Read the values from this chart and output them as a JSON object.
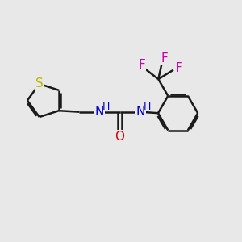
{
  "bg_color": "#e8e8e8",
  "bond_color": "#1a1a1a",
  "S_color": "#b8b800",
  "N_color": "#0000cc",
  "O_color": "#dd0000",
  "F_color": "#cc00aa",
  "line_width": 1.8,
  "fig_size": [
    3.0,
    3.0
  ],
  "dpi": 100,
  "xlim": [
    0,
    10
  ],
  "ylim": [
    0,
    10
  ]
}
